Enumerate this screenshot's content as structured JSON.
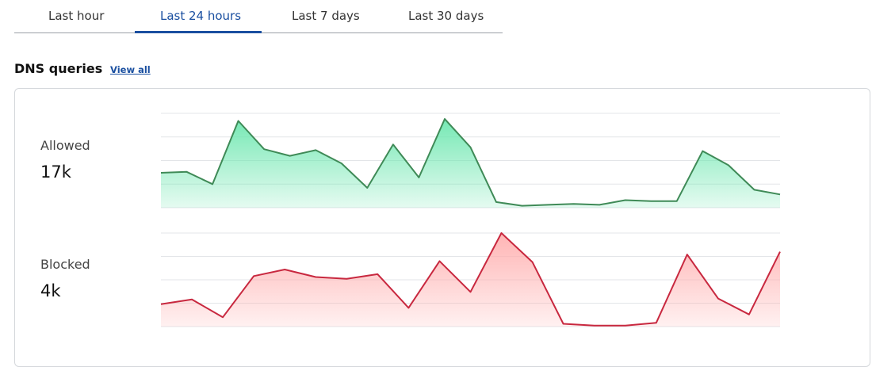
{
  "tabs": [
    "Last hour",
    "Last 24 hours",
    "Last 7 days",
    "Last 30 days"
  ],
  "selected_tab": 1,
  "section": {
    "title": "DNS queries",
    "link": "View all"
  },
  "chart_data": [
    {
      "type": "area",
      "title": "Allowed",
      "total": "17k",
      "color": "#3f8a57",
      "fill": "#6ee7b0",
      "values": [
        37,
        38,
        25,
        92,
        62,
        55,
        61,
        47,
        21,
        67,
        32,
        94,
        64,
        6,
        2,
        3,
        4,
        3,
        8,
        7,
        7,
        60,
        45,
        19,
        14
      ],
      "ylim": [
        0,
        100
      ],
      "yticks": [
        0,
        25,
        50,
        75,
        100
      ],
      "grid": true
    },
    {
      "type": "area",
      "title": "Blocked",
      "total": "4k",
      "color": "#c8283f",
      "fill": "#ffb0b0",
      "values": [
        24,
        29,
        10,
        54,
        61,
        53,
        51,
        56,
        20,
        70,
        37,
        100,
        69,
        3,
        1,
        1,
        4,
        77,
        30,
        13,
        80
      ],
      "ylim": [
        0,
        100
      ],
      "yticks": [
        0,
        25,
        50,
        75,
        100
      ],
      "grid": true
    }
  ]
}
